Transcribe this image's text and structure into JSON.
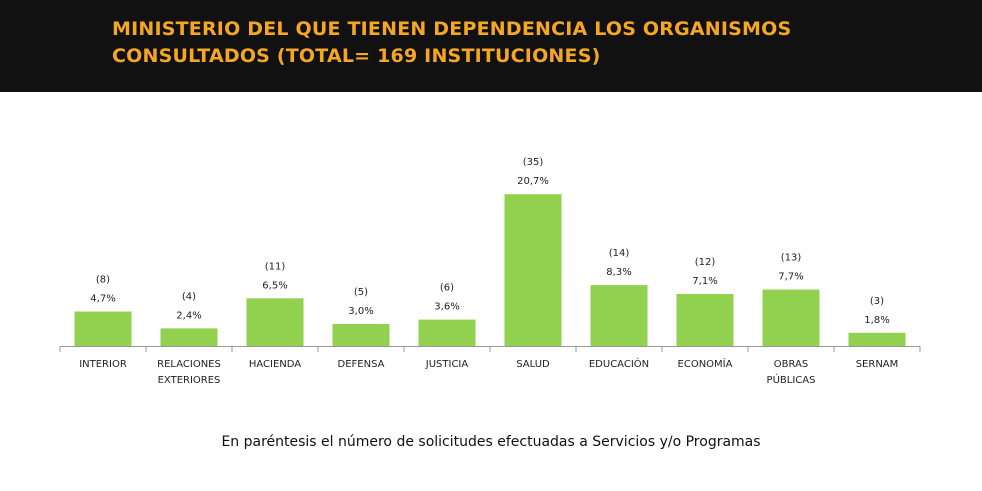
{
  "header": {
    "title": "MINISTERIO DEL QUE TIENEN DEPENDENCIA LOS ORGANISMOS\nCONSULTADOS (TOTAL= 169 INSTITUCIONES)"
  },
  "chart_data": {
    "type": "bar",
    "title": "",
    "xlabel": "",
    "ylabel": "",
    "categories": [
      [
        "INTERIOR"
      ],
      [
        "RELACIONES",
        "EXTERIORES"
      ],
      [
        "HACIENDA"
      ],
      [
        "DEFENSA"
      ],
      [
        "JUSTICIA"
      ],
      [
        "SALUD"
      ],
      [
        "EDUCACIÓN"
      ],
      [
        "ECONOMÍA"
      ],
      [
        "OBRAS",
        "PÚBLICAS"
      ],
      [
        "SERNAM"
      ]
    ],
    "values": [
      4.7,
      2.4,
      6.5,
      3.0,
      3.6,
      20.7,
      8.3,
      7.1,
      7.7,
      1.8
    ],
    "value_labels": [
      "4,7%",
      "2,4%",
      "6,5%",
      "3,0%",
      "3,6%",
      "20,7%",
      "8,3%",
      "7,1%",
      "7,7%",
      "1,8%"
    ],
    "counts": [
      "(8)",
      "(4)",
      "(11)",
      "(5)",
      "(6)",
      "(35)",
      "(14)",
      "(12)",
      "(13)",
      "(3)"
    ],
    "ylim": [
      0,
      21
    ],
    "grid": false,
    "bar_color": "#92d050"
  },
  "footnote": "En paréntesis el número de solicitudes efectuadas a Servicios y/o Programas"
}
